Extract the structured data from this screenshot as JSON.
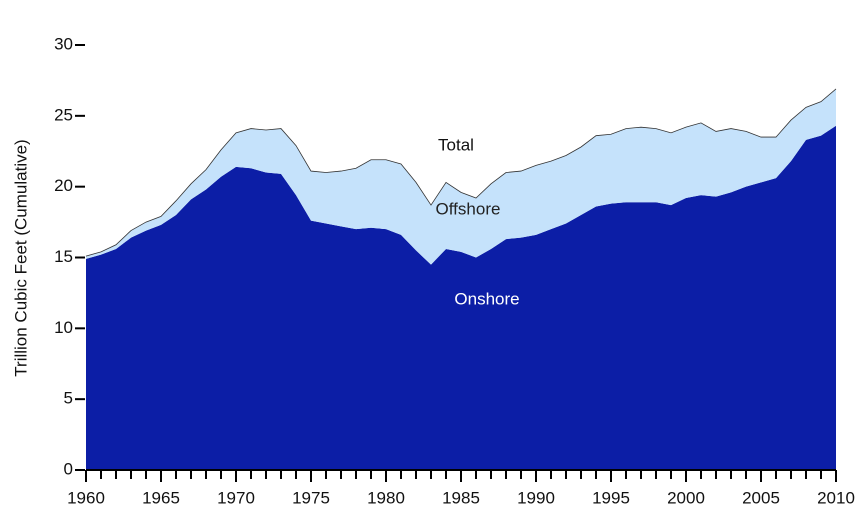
{
  "chart_data": {
    "type": "stacked_area",
    "y_label": "Trillion Cubic Feet (Cumulative)",
    "annotation": "Total",
    "x": [
      1960,
      1961,
      1962,
      1963,
      1964,
      1965,
      1966,
      1967,
      1968,
      1969,
      1970,
      1971,
      1972,
      1973,
      1974,
      1975,
      1976,
      1977,
      1978,
      1979,
      1980,
      1981,
      1982,
      1983,
      1984,
      1985,
      1986,
      1987,
      1988,
      1989,
      1990,
      1991,
      1992,
      1993,
      1994,
      1995,
      1996,
      1997,
      1998,
      1999,
      2000,
      2001,
      2002,
      2003,
      2004,
      2005,
      2006,
      2007,
      2008,
      2009,
      2010
    ],
    "series": [
      {
        "name": "Onshore",
        "color": "#0c1ea6",
        "label_color": "#ffffff",
        "values": [
          14.9,
          15.2,
          15.6,
          16.4,
          16.9,
          17.3,
          18.0,
          19.1,
          19.8,
          20.7,
          21.4,
          21.3,
          21.0,
          20.9,
          19.4,
          17.6,
          17.4,
          17.2,
          17.0,
          17.1,
          17.0,
          16.6,
          15.5,
          14.5,
          15.6,
          15.4,
          15.0,
          15.6,
          16.3,
          16.4,
          16.6,
          17.0,
          17.4,
          18.0,
          18.6,
          18.8,
          18.9,
          18.9,
          18.9,
          18.7,
          19.2,
          19.4,
          19.3,
          19.6,
          20.0,
          20.3,
          20.6,
          21.8,
          23.3,
          23.6,
          24.3
        ]
      },
      {
        "name": "Offshore",
        "color": "#c5e2fb",
        "label_color": "#222222",
        "values": [
          0.2,
          0.2,
          0.3,
          0.5,
          0.6,
          0.6,
          1.0,
          1.1,
          1.4,
          1.9,
          2.4,
          2.8,
          3.0,
          3.2,
          3.5,
          3.5,
          3.6,
          3.9,
          4.3,
          4.8,
          4.9,
          5.0,
          4.8,
          4.2,
          4.7,
          4.2,
          4.2,
          4.6,
          4.7,
          4.7,
          4.9,
          4.8,
          4.8,
          4.8,
          5.0,
          4.9,
          5.2,
          5.3,
          5.2,
          5.1,
          5.0,
          5.1,
          4.6,
          4.5,
          3.9,
          3.2,
          2.9,
          2.9,
          2.3,
          2.4,
          2.6
        ]
      }
    ],
    "xlim": [
      1960,
      2010
    ],
    "xticks": [
      1960,
      1965,
      1970,
      1975,
      1980,
      1985,
      1990,
      1995,
      2000,
      2005,
      2010
    ],
    "ylim": [
      0,
      30
    ],
    "yticks": [
      0,
      5,
      10,
      15,
      20,
      25,
      30
    ]
  }
}
